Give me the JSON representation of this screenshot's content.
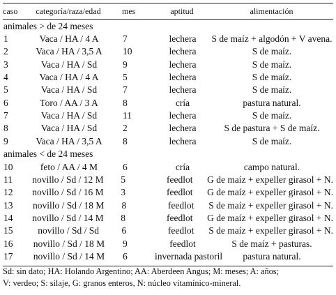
{
  "headers": [
    "caso",
    "categoría/raza/edad",
    "mes",
    "aptitud",
    "alimentación"
  ],
  "sections": [
    {
      "label": "animales > de 24 meses",
      "rows": [
        [
          "1",
          "Vaca / HA / 4 A",
          "7",
          "lechera",
          "S de maíz + algodón + V avena."
        ],
        [
          "2",
          "Vaca / HA / 3,5 A",
          "10",
          "lechera",
          "S de maíz."
        ],
        [
          "3",
          "Vaca / HA / Sd",
          "9",
          "lechera",
          "S de maíz."
        ],
        [
          "4",
          "Vaca / HA / 4 A",
          "5",
          "lechera",
          "S de maíz."
        ],
        [
          "5",
          "Vaca / HA / Sd",
          "7",
          "lechera",
          "S de maíz."
        ],
        [
          "6",
          "Toro / AA / 3 A",
          "8",
          "cría",
          "pastura natural."
        ],
        [
          "7",
          "Vaca / HA / Sd",
          "11",
          "lechera",
          "S de maíz."
        ],
        [
          "8",
          "Vaca / HA / Sd",
          "2",
          "lechera",
          "S de pastura + S de maíz."
        ],
        [
          "9",
          "Vaca / HA / 3,5 A",
          "8",
          "lechera",
          "S de maíz."
        ]
      ]
    },
    {
      "label": "animales < de 24 meses",
      "rows": [
        [
          "10",
          "feto / AA / 4 M",
          "6",
          "cría",
          "campo natural."
        ],
        [
          "11",
          "novillo / Sd / 12 M",
          "5",
          "feedlot",
          "G de maíz + expeller girasol + N."
        ],
        [
          "12",
          "novillo / Sd / 16 M",
          "3",
          "feedlot",
          "G de maíz + expeller girasol + N."
        ],
        [
          "13",
          "novillo / Sd / 18 M",
          "8",
          "feedlot",
          "S de maíz + expeller girasol + N."
        ],
        [
          "14",
          "novillo / Sd / 14 M",
          "8",
          "feedlot",
          "G de maíz + expeller girasol + N."
        ],
        [
          "15",
          "novillo / Sd / Sd",
          "6",
          "feedlot",
          "S de maíz + expeller girasol + N."
        ],
        [
          "16",
          "novillo / Sd / 18 M",
          "9",
          "feedlot",
          "S de maíz + pasturas."
        ],
        [
          "17",
          "novillo / Sd / 14 M",
          "6",
          "invernada pastoril",
          "pastura natural."
        ]
      ]
    }
  ],
  "footnote": [
    "Sd: sin dato; HA: Holando Argentino; AA: Aberdeen Angus; M: meses; A: años;",
    "V: verdeo; S: silaje, G: granos enteros, N: núcleo vitamínico-mineral."
  ]
}
